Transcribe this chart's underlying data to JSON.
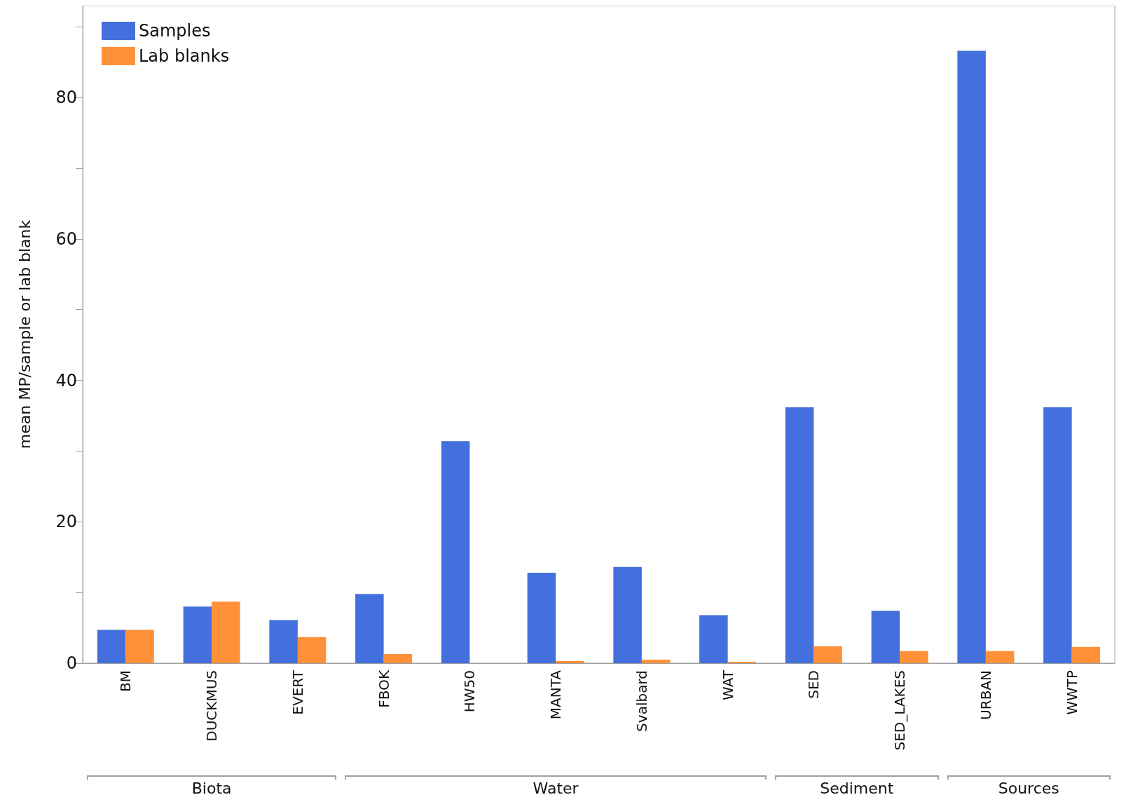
{
  "chart_data": {
    "type": "bar",
    "ylabel": "mean MP/sample or lab blank",
    "categories": [
      "BM",
      "DUCKMUS",
      "EVERT",
      "FBOK",
      "HW50",
      "MANTA",
      "Svalbard",
      "WAT",
      "SED",
      "SED_LAKES",
      "URBAN",
      "WWTP"
    ],
    "series": [
      {
        "name": "Samples",
        "color": "#4370dc",
        "values": [
          4.7,
          8.0,
          6.1,
          9.8,
          31.4,
          12.8,
          13.6,
          6.8,
          36.2,
          7.4,
          86.6,
          36.2
        ]
      },
      {
        "name": "Lab blanks",
        "color": "#ff9138",
        "values": [
          4.7,
          8.7,
          3.7,
          1.3,
          0,
          0.3,
          0.5,
          0.2,
          2.4,
          1.7,
          1.7,
          2.3
        ]
      }
    ],
    "ylim": [
      0,
      93
    ],
    "yticks": [
      0,
      {
        "value": 10,
        "label": null
      },
      20,
      {
        "value": 30,
        "label": null
      },
      40,
      {
        "value": 50,
        "label": null
      },
      60,
      {
        "value": 70,
        "label": null
      },
      80,
      {
        "value": 90,
        "label": null
      }
    ],
    "grid": false,
    "legend": "top left",
    "annotations": [
      "Biota",
      "Water",
      "Sediment",
      "Sources"
    ]
  }
}
